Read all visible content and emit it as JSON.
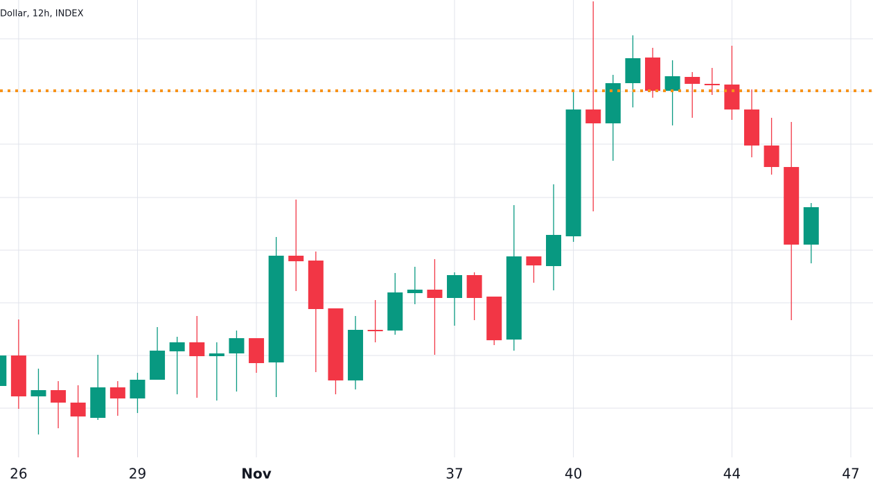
{
  "chart_data": {
    "type": "candlestick",
    "title": "Dollar, 12h, INDEX",
    "x": [
      25.5,
      26,
      26.5,
      27,
      27.5,
      28,
      28.5,
      29,
      29.5,
      30,
      30.5,
      31,
      31.5,
      32,
      32.5,
      33,
      33.5,
      34,
      34.5,
      35,
      35.5,
      36,
      36.5,
      37,
      37.5,
      38,
      38.5,
      39,
      39.5,
      40,
      40.5,
      41,
      41.5,
      42,
      42.5,
      43,
      43.5,
      44,
      44.5,
      45,
      45.5,
      46
    ],
    "open": [
      103,
      147,
      88,
      97,
      79,
      57,
      101,
      85,
      112,
      153,
      166,
      146,
      150,
      172,
      137,
      291,
      284,
      215,
      111,
      184,
      183,
      237,
      242,
      230,
      263,
      232,
      170,
      290,
      276,
      319,
      502,
      482,
      540,
      577,
      529,
      549,
      539,
      538,
      502,
      450,
      419,
      307
    ],
    "high": [
      147,
      199,
      128,
      110,
      104,
      148,
      110,
      122,
      188,
      174,
      204,
      166,
      183,
      172,
      318,
      372,
      297,
      215,
      204,
      227,
      266,
      275,
      286,
      267,
      267,
      232,
      364,
      290,
      394,
      529,
      658,
      552,
      609,
      591,
      573,
      556,
      562,
      594,
      531,
      490,
      484,
      367
    ],
    "low": [
      103,
      70,
      33,
      42,
      0,
      54,
      60,
      64,
      112,
      91,
      86,
      82,
      95,
      122,
      87,
      240,
      123,
      91,
      98,
      166,
      177,
      221,
      148,
      190,
      198,
      162,
      154,
      252,
      241,
      311,
      355,
      428,
      505,
      519,
      479,
      490,
      523,
      487,
      433,
      408,
      198,
      280
    ],
    "close": [
      147,
      88,
      97,
      79,
      59,
      101,
      85,
      112,
      154,
      166,
      146,
      150,
      172,
      136,
      291,
      283,
      214,
      111,
      184,
      182,
      238,
      242,
      230,
      263,
      230,
      169,
      290,
      277,
      321,
      502,
      482,
      540,
      576,
      529,
      550,
      539,
      537,
      502,
      450,
      419,
      307,
      361
    ],
    "xlim": [
      25.53,
      47.56
    ],
    "xticks": [
      26,
      29,
      {
        "value": 32,
        "label": "Nov"
      },
      37,
      40,
      44,
      47
    ],
    "ylim": [
      0,
      660
    ],
    "yticks": [
      71,
      147,
      223,
      299,
      375,
      452,
      528,
      604
    ],
    "grid": true,
    "up_color": "#089981",
    "down_color": "#f23645",
    "price_line": {
      "value": 529,
      "color": "#f7931a"
    }
  }
}
